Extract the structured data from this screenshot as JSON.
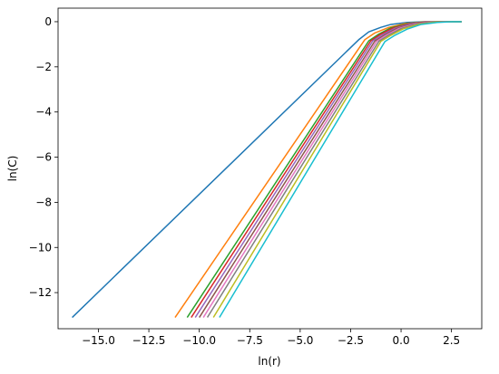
{
  "chart_data": {
    "type": "line",
    "xlabel": "ln(r)",
    "ylabel": "ln(C)",
    "xlim": [
      -17.0,
      4.0
    ],
    "ylim": [
      -13.6,
      0.6
    ],
    "xticks": [
      -15.0,
      -12.5,
      -10.0,
      -7.5,
      -5.0,
      -2.5,
      0.0,
      2.5
    ],
    "xtick_labels": [
      "−15.0",
      "−12.5",
      "−10.0",
      "−7.5",
      "−5.0",
      "−2.5",
      "0.0",
      "2.5"
    ],
    "yticks": [
      -12,
      -10,
      -8,
      -6,
      -4,
      -2,
      0
    ],
    "ytick_labels": [
      "−12",
      "−10",
      "−8",
      "−6",
      "−4",
      "−2",
      "0"
    ],
    "grid": false,
    "series": [
      {
        "color": "#1f77b4",
        "x": [
          -16.3,
          -2.1,
          -1.6,
          -1.0,
          -0.5,
          0.3,
          1.2,
          2.0,
          3.0
        ],
        "y": [
          -13.1,
          -0.8,
          -0.45,
          -0.25,
          -0.12,
          -0.03,
          0.0,
          0.0,
          0.0
        ]
      },
      {
        "color": "#ff7f0e",
        "x": [
          -11.2,
          -1.8,
          -1.3,
          -0.6,
          0.2,
          1.1,
          2.0,
          3.0
        ],
        "y": [
          -13.1,
          -0.8,
          -0.5,
          -0.25,
          -0.08,
          -0.01,
          0.0,
          0.0
        ]
      },
      {
        "color": "#2ca02c",
        "x": [
          -10.6,
          -1.6,
          -1.1,
          -0.5,
          0.3,
          1.1,
          2.0,
          3.0
        ],
        "y": [
          -13.1,
          -0.85,
          -0.55,
          -0.27,
          -0.09,
          -0.01,
          0.0,
          0.0
        ]
      },
      {
        "color": "#d62728",
        "x": [
          -10.4,
          -1.5,
          -1.0,
          -0.4,
          0.4,
          1.2,
          2.1,
          3.0
        ],
        "y": [
          -13.1,
          -0.85,
          -0.55,
          -0.28,
          -0.09,
          -0.01,
          0.0,
          0.0
        ]
      },
      {
        "color": "#9467bd",
        "x": [
          -10.2,
          -1.4,
          -0.9,
          -0.3,
          0.5,
          1.3,
          2.1,
          3.0
        ],
        "y": [
          -13.1,
          -0.85,
          -0.57,
          -0.29,
          -0.09,
          -0.02,
          0.0,
          0.0
        ]
      },
      {
        "color": "#8c564b",
        "x": [
          -10.0,
          -1.3,
          -0.8,
          -0.2,
          0.6,
          1.4,
          2.2,
          3.0
        ],
        "y": [
          -13.1,
          -0.86,
          -0.58,
          -0.3,
          -0.1,
          -0.02,
          0.0,
          0.0
        ]
      },
      {
        "color": "#e377c2",
        "x": [
          -9.8,
          -1.2,
          -0.7,
          -0.1,
          0.7,
          1.5,
          2.2,
          3.0
        ],
        "y": [
          -13.1,
          -0.86,
          -0.58,
          -0.3,
          -0.1,
          -0.02,
          0.0,
          0.0
        ]
      },
      {
        "color": "#7f7f7f",
        "x": [
          -9.6,
          -1.1,
          -0.6,
          0.0,
          0.8,
          1.6,
          2.3,
          3.0
        ],
        "y": [
          -13.1,
          -0.87,
          -0.59,
          -0.31,
          -0.1,
          -0.02,
          0.0,
          0.0
        ]
      },
      {
        "color": "#bcbd22",
        "x": [
          -9.3,
          -1.0,
          -0.5,
          0.1,
          0.9,
          1.7,
          2.4,
          3.0
        ],
        "y": [
          -13.1,
          -0.87,
          -0.6,
          -0.32,
          -0.11,
          -0.02,
          0.0,
          0.0
        ]
      },
      {
        "color": "#17becf",
        "x": [
          -9.0,
          -0.8,
          -0.3,
          0.3,
          1.0,
          1.8,
          2.5,
          3.0
        ],
        "y": [
          -13.1,
          -0.88,
          -0.6,
          -0.33,
          -0.12,
          -0.03,
          0.0,
          0.0
        ]
      }
    ]
  }
}
